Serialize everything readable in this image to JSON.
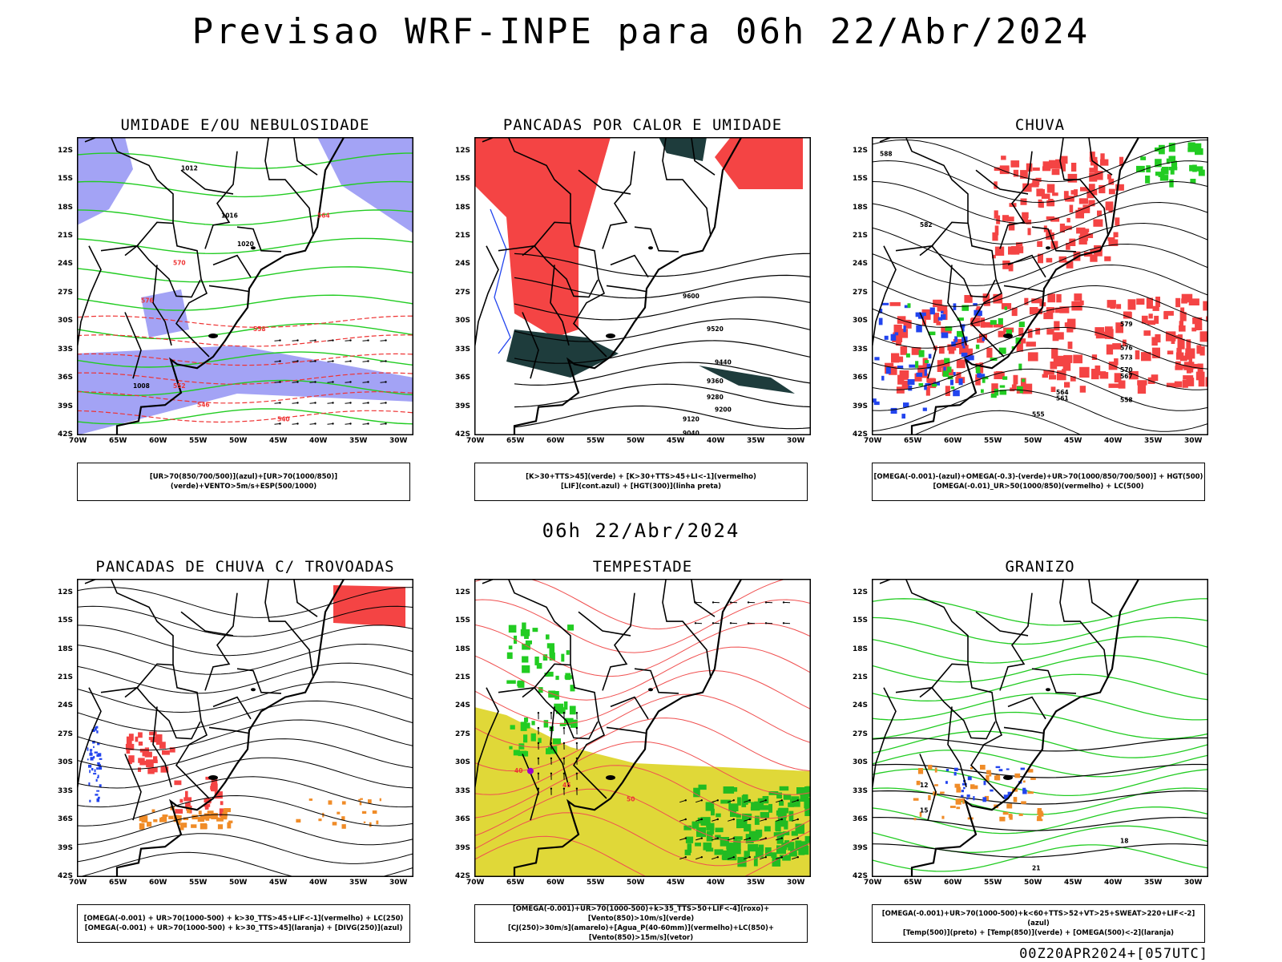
{
  "header": {
    "title": "Previsao WRF-INPE  para 06h 22/Abr/2024",
    "middle_title": "06h 22/Abr/2024",
    "footer": "00Z20APR2024+[057UTC]"
  },
  "axes": {
    "lat_labels": [
      "12S",
      "15S",
      "18S",
      "21S",
      "24S",
      "27S",
      "30S",
      "33S",
      "36S",
      "39S",
      "42S"
    ],
    "lon_labels": [
      "70W",
      "65W",
      "60W",
      "55W",
      "50W",
      "45W",
      "40W",
      "35W",
      "30W"
    ]
  },
  "panels": [
    {
      "title": "UMIDADE E/OU NEBULOSIDADE",
      "legend": [
        "[UR>70(850/700/500)](azul)+[UR>70(1000/850)](verde)+VENTO>5m/s+ESP(500/1000)"
      ],
      "contour_labels": [
        "1012",
        "1016",
        "1020",
        "1008",
        "576",
        "570",
        "564",
        "558",
        "552",
        "546",
        "540"
      ]
    },
    {
      "title": "PANCADAS POR CALOR E UMIDADE",
      "legend": [
        "[K>30+TTS>45](verde)  +  [K>30+TTS>45+LI<-1](vermelho)",
        "[LIF](cont.azul)  +  [HGT(300)](linha preta)"
      ],
      "contour_labels": [
        "9600",
        "9520",
        "9440",
        "9360",
        "9280",
        "9200",
        "9120",
        "9040"
      ]
    },
    {
      "title": "CHUVA",
      "legend": [
        "[OMEGA(-0.001)-(azul)+OMEGA(-0.3)-(verde)+UR>70(1000/850/700/500)]  +  HGT(500)",
        "[OMEGA(-0.01)_UR>50(1000/850)(vermelho) + LC(500)"
      ],
      "contour_labels": [
        "588",
        "582",
        "579",
        "576",
        "573",
        "570",
        "567",
        "564",
        "561",
        "558",
        "555"
      ]
    },
    {
      "title": "PANCADAS DE CHUVA C/ TROVOADAS",
      "legend": [
        "[OMEGA(-0.001) + UR>70(1000-500) + k>30_TTS>45+LIF<-1](vermelho) + LC(250)",
        "[OMEGA(-0.001) + UR>70(1000-500) + k>30_TTS>45](laranja) + [DIVG(250)](azul)"
      ],
      "contour_labels": []
    },
    {
      "title": "TEMPESTADE",
      "legend": [
        "[OMEGA(-0.001)+UR>70(1000-500)+k>35_TTS>50+LIF<-4](roxo)+[Vento(850)>10m/s](verde)",
        "[CJ(250)>30m/s](amarelo)+[Agua_P(40-60mm)](vermelho)+LC(850)+[Vento(850)>15m/s](vetor)"
      ],
      "contour_labels": [
        "40",
        "45",
        "50"
      ]
    },
    {
      "title": "GRANIZO",
      "legend": [
        "[OMEGA(-0.001)+UR>70(1000-500)+k<60+TTS>52+VT>25+SWEAT>220+LIF<-2](azul)",
        "[Temp(500)](preto)  +  [Temp(850)](verde)  +  [OMEGA(500)<-2](laranja)"
      ],
      "contour_labels": [
        "12",
        "15",
        "18",
        "21"
      ]
    }
  ],
  "colors": {
    "blue_fill": "#a3a3f5",
    "green_line": "#22cc22",
    "red_fill": "#f44444",
    "dark_green": "#1e3c3c",
    "orange": "#f08c28",
    "yellow": "#e0d838",
    "blue": "#2244ee",
    "purple": "#9900cc"
  }
}
